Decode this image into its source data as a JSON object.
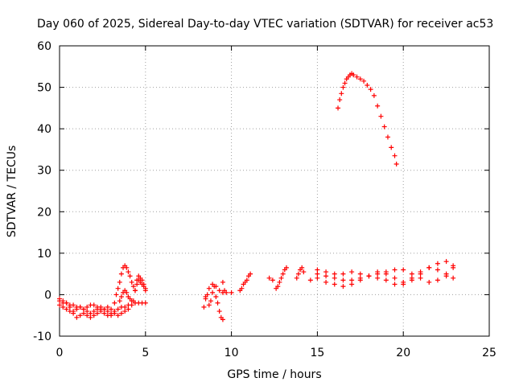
{
  "chart_data": {
    "type": "scatter",
    "title": "Day 060 of 2025, Sidereal Day-to-day VTEC variation (SDTVAR) for receiver ac53",
    "xlabel": "GPS time / hours",
    "ylabel": "SDTVAR / TECUs",
    "xlim": [
      0,
      25
    ],
    "ylim": [
      -10,
      60
    ],
    "xticks": [
      0,
      5,
      10,
      15,
      20,
      25
    ],
    "yticks": [
      -10,
      0,
      10,
      20,
      30,
      40,
      50,
      60
    ],
    "xtick_labels": [
      "0",
      "5",
      "10",
      "15",
      "20",
      "25"
    ],
    "ytick_labels": [
      "-10",
      "0",
      "10",
      "20",
      "30",
      "40",
      "50",
      "60"
    ],
    "grid": true,
    "marker": "+",
    "color": "#ff0000",
    "series": [
      {
        "name": "seg-a",
        "x": [
          0.0,
          0.2,
          0.4,
          0.6,
          0.8,
          1.0,
          1.2,
          1.4,
          1.6,
          1.8,
          2.0,
          2.2,
          2.4,
          2.6,
          2.8,
          3.0,
          3.2,
          3.4,
          3.6,
          3.8,
          4.0,
          4.2,
          4.4,
          4.6,
          4.8,
          5.0
        ],
        "y": [
          -2.5,
          -3.0,
          -3.5,
          -4.0,
          -4.0,
          -3.5,
          -3.0,
          -3.5,
          -4.0,
          -4.5,
          -4.0,
          -3.5,
          -3.0,
          -3.5,
          -4.0,
          -4.5,
          -4.0,
          -3.5,
          -3.0,
          -3.0,
          -2.5,
          -2.5,
          -2.0,
          -2.0,
          -2.0,
          -2.0
        ]
      },
      {
        "name": "seg-b",
        "x": [
          0.0,
          0.2,
          0.4,
          0.6,
          0.8,
          1.0,
          1.2,
          1.4,
          1.6,
          1.8,
          2.0,
          2.2,
          2.4,
          2.6,
          2.8,
          3.0,
          3.2,
          3.4,
          3.6,
          3.8,
          4.0
        ],
        "y": [
          -1.5,
          -2.0,
          -2.0,
          -2.5,
          -2.5,
          -3.0,
          -3.0,
          -3.5,
          -3.0,
          -2.5,
          -2.5,
          -3.0,
          -3.5,
          -3.5,
          -3.0,
          -3.5,
          -4.5,
          -5.0,
          -4.5,
          -4.0,
          -3.5
        ]
      },
      {
        "name": "seg-c",
        "x": [
          0.0,
          0.2,
          0.4,
          0.6,
          0.8,
          1.0,
          1.2,
          1.4,
          1.6,
          1.8,
          2.0,
          2.2,
          2.4,
          2.6,
          2.8,
          3.0
        ],
        "y": [
          -1.0,
          -1.5,
          -2.0,
          -3.0,
          -4.5,
          -5.5,
          -5.0,
          -4.5,
          -5.0,
          -5.5,
          -5.0,
          -4.5,
          -4.0,
          -4.5,
          -5.0,
          -5.0
        ]
      },
      {
        "name": "seg-d",
        "x": [
          3.2,
          3.3,
          3.4,
          3.5,
          3.6,
          3.7,
          3.8,
          3.9,
          4.0,
          4.1,
          4.2,
          4.3,
          4.4,
          4.5,
          4.6,
          4.7,
          4.8,
          4.9,
          5.0
        ],
        "y": [
          -2.0,
          0.0,
          1.5,
          3.0,
          5.0,
          6.5,
          7.0,
          6.5,
          5.5,
          4.5,
          3.0,
          2.0,
          1.0,
          3.5,
          4.5,
          4.0,
          3.5,
          2.5,
          1.5
        ]
      },
      {
        "name": "seg-e",
        "x": [
          3.5,
          3.6,
          3.7,
          3.8,
          3.9,
          4.0,
          4.1,
          4.2,
          4.3,
          4.4,
          4.5,
          4.6,
          4.7,
          4.8,
          4.9,
          5.0
        ],
        "y": [
          -1.5,
          -0.5,
          0.5,
          1.0,
          0.5,
          -0.5,
          -1.0,
          -1.5,
          -1.5,
          1.0,
          2.5,
          3.5,
          3.0,
          2.5,
          2.0,
          1.0
        ]
      },
      {
        "name": "seg-f",
        "x": [
          8.4,
          8.5,
          8.6,
          8.7,
          8.8,
          8.9,
          9.0,
          9.1,
          9.2,
          9.3,
          9.4,
          9.5,
          9.6,
          8.5,
          8.7,
          8.9,
          9.1,
          9.3,
          9.5
        ],
        "y": [
          -3.0,
          -1.0,
          0.0,
          -2.5,
          -1.5,
          0.5,
          2.0,
          -0.5,
          -2.0,
          -4.0,
          -5.5,
          -6.0,
          1.0,
          -0.5,
          1.5,
          2.5,
          2.0,
          1.0,
          3.0
        ]
      },
      {
        "name": "seg-g",
        "x": [
          9.5,
          9.7,
          10.0,
          10.5,
          10.6,
          10.7,
          10.8,
          10.9,
          11.0,
          11.1,
          12.2,
          12.4,
          12.6,
          12.7,
          12.8,
          12.9,
          13.0,
          13.1,
          13.2,
          13.8,
          13.9,
          14.0,
          14.1,
          14.2,
          14.6
        ],
        "y": [
          0.5,
          0.5,
          0.5,
          1.0,
          1.5,
          2.5,
          3.0,
          3.5,
          4.5,
          5.0,
          4.0,
          3.5,
          1.5,
          2.0,
          3.0,
          4.0,
          5.0,
          6.0,
          6.5,
          4.0,
          5.0,
          6.0,
          6.5,
          5.5,
          3.5
        ]
      },
      {
        "name": "seg-h",
        "x": [
          15.0,
          15.5,
          16.0,
          16.5,
          17.0,
          17.5,
          18.0,
          18.5,
          19.0,
          19.5,
          20.0,
          20.5,
          21.0,
          21.5,
          22.0,
          22.5,
          22.9
        ],
        "y": [
          4.0,
          3.0,
          2.5,
          2.0,
          2.5,
          3.5,
          4.5,
          5.5,
          5.0,
          4.0,
          3.0,
          3.5,
          5.0,
          6.5,
          7.5,
          8.0,
          7.0
        ]
      },
      {
        "name": "seg-i",
        "x": [
          15.0,
          15.5,
          16.0,
          16.5,
          17.0,
          17.5,
          18.0,
          18.5,
          19.0,
          19.5,
          20.0,
          20.5,
          21.0,
          21.5,
          22.0,
          22.5,
          22.9
        ],
        "y": [
          6.0,
          5.5,
          5.0,
          5.0,
          5.5,
          5.0,
          4.5,
          4.0,
          3.5,
          2.5,
          2.5,
          4.0,
          5.5,
          6.5,
          6.0,
          5.0,
          4.0
        ]
      },
      {
        "name": "seg-j",
        "x": [
          15.0,
          15.5,
          16.0,
          16.5,
          17.0,
          17.5,
          18.0,
          18.5,
          19.0,
          19.5,
          20.0,
          20.5,
          21.0,
          21.5,
          22.0,
          22.5,
          22.9
        ],
        "y": [
          5.0,
          4.5,
          4.0,
          3.5,
          3.5,
          4.0,
          4.5,
          5.0,
          5.5,
          6.0,
          6.0,
          5.0,
          4.0,
          3.0,
          3.5,
          4.5,
          6.5
        ]
      },
      {
        "name": "seg-k",
        "x": [
          16.2,
          16.3,
          16.4,
          16.5,
          16.6,
          16.7,
          16.8,
          16.9,
          17.0,
          17.1,
          17.3,
          17.5,
          17.7,
          17.9,
          18.1,
          18.3,
          18.5,
          18.7,
          18.9,
          19.1,
          19.3,
          19.5,
          19.6
        ],
        "y": [
          45.0,
          47.0,
          48.5,
          50.0,
          51.0,
          52.0,
          52.5,
          53.0,
          53.3,
          53.0,
          52.5,
          52.0,
          51.5,
          50.5,
          49.5,
          48.0,
          45.5,
          43.0,
          40.5,
          38.0,
          35.5,
          33.5,
          31.5
        ]
      }
    ]
  }
}
